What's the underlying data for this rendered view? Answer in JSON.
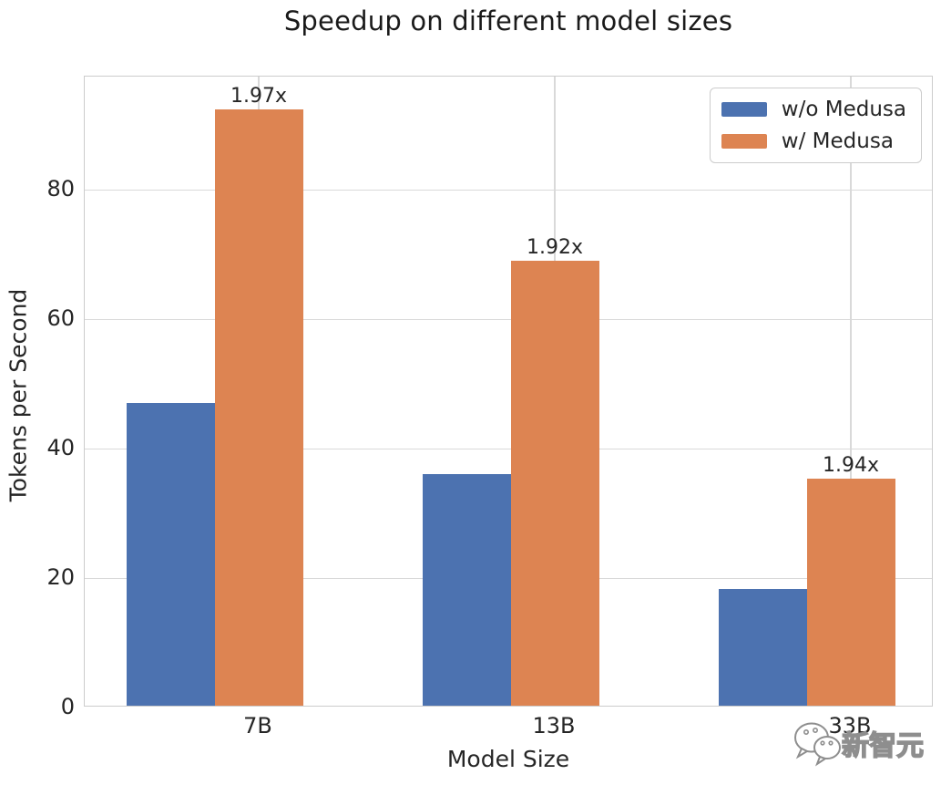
{
  "chart_data": {
    "type": "bar",
    "title": "Speedup on different model sizes",
    "xlabel": "Model Size",
    "ylabel": "Tokens per Second",
    "categories": [
      "7B",
      "13B",
      "33B"
    ],
    "series": [
      {
        "name": "w/o Medusa",
        "color": "#4C72B0",
        "values": [
          46.8,
          35.8,
          18.1
        ]
      },
      {
        "name": "w/ Medusa",
        "color": "#DD8452",
        "values": [
          92.2,
          68.8,
          35.1
        ]
      }
    ],
    "annotations": [
      "1.97x",
      "1.92x",
      "1.94x"
    ],
    "yticks": [
      0,
      20,
      40,
      60,
      80
    ],
    "ylim": [
      0,
      97.5
    ],
    "grid": true,
    "legend_position": "upper right",
    "colors": {
      "grid": "#d9d9d9",
      "border": "#cccccc",
      "text": "#262626",
      "bar_blue": "#4C72B0",
      "bar_orange": "#DD8452"
    }
  },
  "watermark": {
    "text": "新智元",
    "icon": "wechat-icon"
  }
}
